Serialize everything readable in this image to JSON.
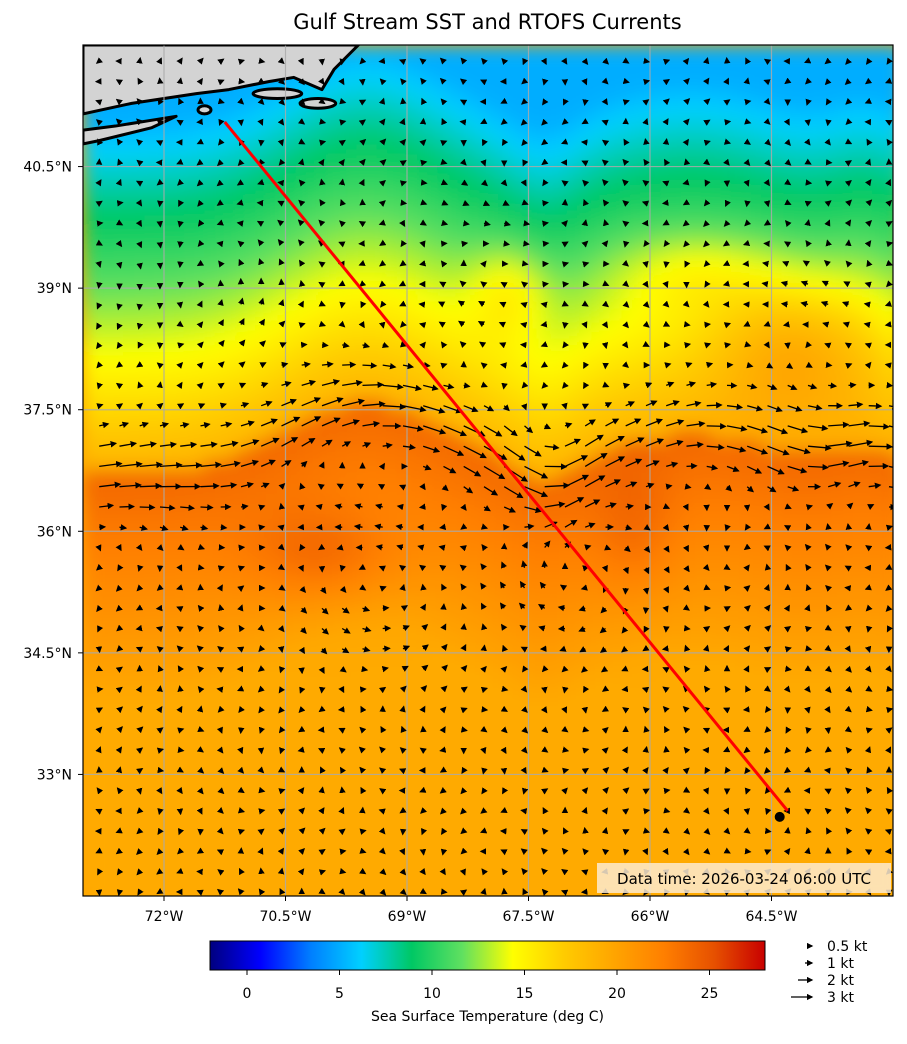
{
  "title": "Gulf Stream SST and RTOFS Currents",
  "map": {
    "lon_range": [
      -73.0,
      -63.0
    ],
    "lat_range": [
      31.5,
      42.0
    ],
    "lon_ticks": [
      "72°W",
      "70.5°W",
      "69°W",
      "67.5°W",
      "66°W",
      "64.5°W"
    ],
    "lon_tick_values": [
      -72.0,
      -70.5,
      -69.0,
      -67.5,
      -66.0,
      -64.5
    ],
    "lat_ticks": [
      "40.5°N",
      "39°N",
      "37.5°N",
      "36°N",
      "34.5°N",
      "33°N"
    ],
    "lat_tick_values": [
      40.5,
      39.0,
      37.5,
      36.0,
      34.5,
      33.0
    ],
    "land_color": "#d3d3d3",
    "grid": true,
    "track": {
      "color": "#ff0000",
      "start": {
        "lon": -71.25,
        "lat": 41.05
      },
      "end": {
        "lon": -64.3,
        "lat": 32.55
      }
    },
    "data_time": "Data time: 2026-03-24 06:00 UTC"
  },
  "colorbar": {
    "label": "Sea Surface Temperature (deg C)",
    "range": [
      -2,
      28
    ],
    "ticks": [
      "0",
      "5",
      "10",
      "15",
      "20",
      "25"
    ],
    "tick_values": [
      0,
      5,
      10,
      15,
      20,
      25
    ],
    "colormap": [
      "#00007f",
      "#0000ff",
      "#007fff",
      "#00d0ff",
      "#00c864",
      "#60e060",
      "#ffff00",
      "#ffcc00",
      "#ffa500",
      "#ff7f00",
      "#e65000",
      "#c80000"
    ]
  },
  "vector_legend": {
    "items": [
      "0.5 kt",
      "1 kt",
      "2 kt",
      "3 kt"
    ],
    "speeds": [
      0.5,
      1,
      2,
      3
    ]
  }
}
